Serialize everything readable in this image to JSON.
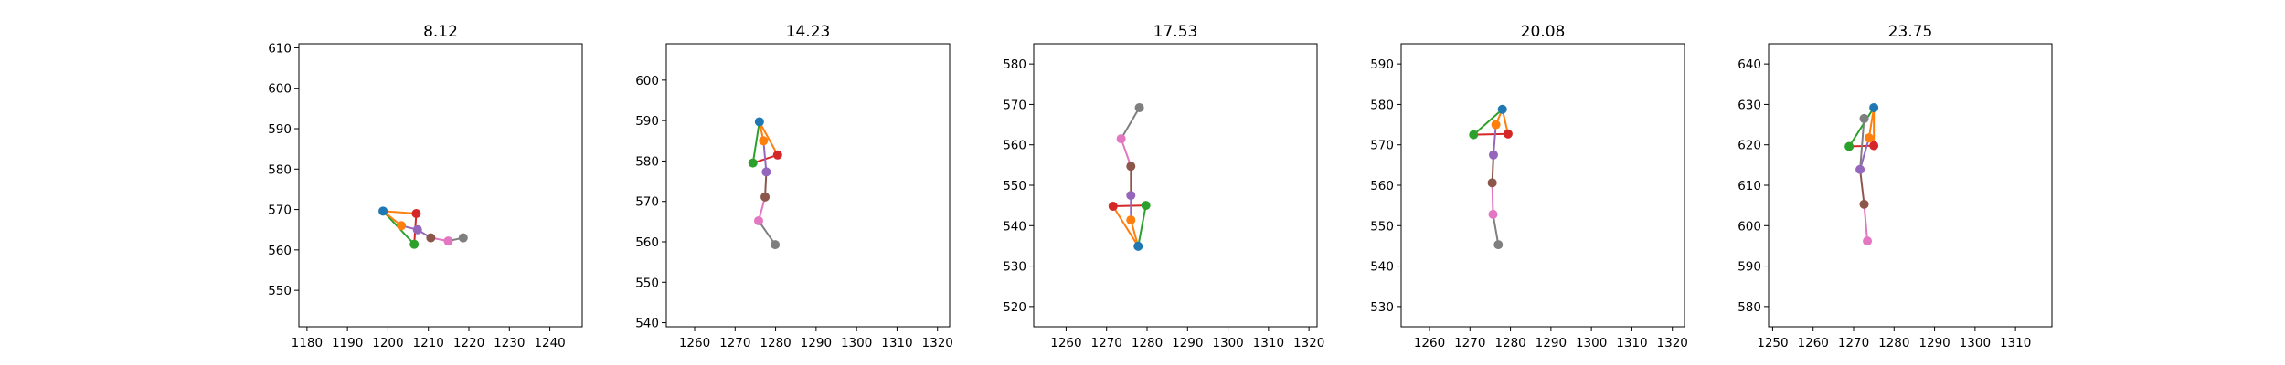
{
  "chart_data": [
    {
      "type": "scatter",
      "title": "8.12",
      "xlim": [
        1178,
        1248
      ],
      "ylim": [
        541,
        611
      ],
      "xticks": [
        1180,
        1190,
        1200,
        1210,
        1220,
        1230,
        1240
      ],
      "yticks": [
        550,
        560,
        570,
        580,
        590,
        600,
        610
      ],
      "points": [
        {
          "x": 1198.8,
          "y": 569.6,
          "color": "#1f77b4"
        },
        {
          "x": 1207.0,
          "y": 569.0,
          "color": "#d62728"
        },
        {
          "x": 1206.5,
          "y": 561.4,
          "color": "#2ca02c"
        },
        {
          "x": 1203.3,
          "y": 566.0,
          "color": "#ff7f0e"
        },
        {
          "x": 1207.3,
          "y": 565.0,
          "color": "#9467bd"
        },
        {
          "x": 1210.6,
          "y": 563.0,
          "color": "#8c564b"
        },
        {
          "x": 1214.9,
          "y": 562.2,
          "color": "#e377c2"
        },
        {
          "x": 1218.6,
          "y": 563.0,
          "color": "#7f7f7f"
        }
      ],
      "edges": [
        [
          0,
          1,
          "#ff7f0e"
        ],
        [
          0,
          2,
          "#2ca02c"
        ],
        [
          1,
          2,
          "#d62728"
        ],
        [
          0,
          3,
          "#ff7f0e"
        ],
        [
          3,
          4,
          "#9467bd"
        ],
        [
          4,
          5,
          "#9467bd"
        ],
        [
          5,
          6,
          "#e377c2"
        ],
        [
          6,
          7,
          "#7f7f7f"
        ]
      ]
    },
    {
      "type": "scatter",
      "title": "14.23",
      "xlim": [
        1253,
        1323
      ],
      "ylim": [
        539,
        609
      ],
      "xticks": [
        1260,
        1270,
        1280,
        1290,
        1300,
        1310,
        1320
      ],
      "yticks": [
        540,
        550,
        560,
        570,
        580,
        590,
        600
      ],
      "points": [
        {
          "x": 1276.0,
          "y": 589.7,
          "color": "#1f77b4"
        },
        {
          "x": 1280.5,
          "y": 581.5,
          "color": "#d62728"
        },
        {
          "x": 1274.4,
          "y": 579.5,
          "color": "#2ca02c"
        },
        {
          "x": 1277.0,
          "y": 585.0,
          "color": "#ff7f0e"
        },
        {
          "x": 1277.7,
          "y": 577.3,
          "color": "#9467bd"
        },
        {
          "x": 1277.4,
          "y": 571.1,
          "color": "#8c564b"
        },
        {
          "x": 1275.8,
          "y": 565.2,
          "color": "#e377c2"
        },
        {
          "x": 1279.9,
          "y": 559.3,
          "color": "#7f7f7f"
        }
      ],
      "edges": [
        [
          0,
          1,
          "#ff7f0e"
        ],
        [
          0,
          2,
          "#2ca02c"
        ],
        [
          1,
          2,
          "#d62728"
        ],
        [
          0,
          3,
          "#ff7f0e"
        ],
        [
          3,
          4,
          "#9467bd"
        ],
        [
          4,
          5,
          "#8c564b"
        ],
        [
          5,
          6,
          "#e377c2"
        ],
        [
          6,
          7,
          "#7f7f7f"
        ]
      ]
    },
    {
      "type": "scatter",
      "title": "17.53",
      "xlim": [
        1252,
        1322
      ],
      "ylim": [
        515,
        585
      ],
      "xticks": [
        1260,
        1270,
        1280,
        1290,
        1300,
        1310,
        1320
      ],
      "yticks": [
        520,
        530,
        540,
        550,
        560,
        570,
        580
      ],
      "points": [
        {
          "x": 1277.8,
          "y": 534.9,
          "color": "#1f77b4"
        },
        {
          "x": 1271.6,
          "y": 544.8,
          "color": "#d62728"
        },
        {
          "x": 1279.7,
          "y": 545.0,
          "color": "#2ca02c"
        },
        {
          "x": 1276.0,
          "y": 541.4,
          "color": "#ff7f0e"
        },
        {
          "x": 1276.0,
          "y": 547.5,
          "color": "#9467bd"
        },
        {
          "x": 1276.0,
          "y": 554.7,
          "color": "#8c564b"
        },
        {
          "x": 1273.6,
          "y": 561.5,
          "color": "#e377c2"
        },
        {
          "x": 1278.1,
          "y": 569.2,
          "color": "#7f7f7f"
        }
      ],
      "edges": [
        [
          0,
          1,
          "#ff7f0e"
        ],
        [
          0,
          2,
          "#2ca02c"
        ],
        [
          1,
          2,
          "#d62728"
        ],
        [
          0,
          3,
          "#ff7f0e"
        ],
        [
          3,
          4,
          "#9467bd"
        ],
        [
          4,
          5,
          "#8c564b"
        ],
        [
          5,
          6,
          "#e377c2"
        ],
        [
          6,
          7,
          "#7f7f7f"
        ]
      ]
    },
    {
      "type": "scatter",
      "title": "20.08",
      "xlim": [
        1253,
        1323
      ],
      "ylim": [
        525,
        595
      ],
      "xticks": [
        1260,
        1270,
        1280,
        1290,
        1300,
        1310,
        1320
      ],
      "yticks": [
        530,
        540,
        550,
        560,
        570,
        580,
        590
      ],
      "points": [
        {
          "x": 1278.0,
          "y": 578.8,
          "color": "#1f77b4"
        },
        {
          "x": 1279.4,
          "y": 572.7,
          "color": "#d62728"
        },
        {
          "x": 1270.9,
          "y": 572.5,
          "color": "#2ca02c"
        },
        {
          "x": 1276.4,
          "y": 575.0,
          "color": "#ff7f0e"
        },
        {
          "x": 1275.8,
          "y": 567.5,
          "color": "#9467bd"
        },
        {
          "x": 1275.5,
          "y": 560.6,
          "color": "#8c564b"
        },
        {
          "x": 1275.7,
          "y": 552.8,
          "color": "#e377c2"
        },
        {
          "x": 1277.0,
          "y": 545.3,
          "color": "#7f7f7f"
        }
      ],
      "edges": [
        [
          0,
          1,
          "#ff7f0e"
        ],
        [
          0,
          2,
          "#2ca02c"
        ],
        [
          1,
          2,
          "#d62728"
        ],
        [
          0,
          3,
          "#ff7f0e"
        ],
        [
          3,
          4,
          "#9467bd"
        ],
        [
          4,
          5,
          "#8c564b"
        ],
        [
          5,
          6,
          "#e377c2"
        ],
        [
          6,
          7,
          "#7f7f7f"
        ]
      ]
    },
    {
      "type": "scatter",
      "title": "23.75",
      "xlim": [
        1249,
        1319
      ],
      "ylim": [
        575,
        645
      ],
      "xticks": [
        1250,
        1260,
        1270,
        1280,
        1290,
        1300,
        1310
      ],
      "yticks": [
        580,
        590,
        600,
        610,
        620,
        630,
        640
      ],
      "points": [
        {
          "x": 1275.0,
          "y": 629.2,
          "color": "#1f77b4"
        },
        {
          "x": 1275.0,
          "y": 619.8,
          "color": "#d62728"
        },
        {
          "x": 1268.9,
          "y": 619.6,
          "color": "#2ca02c"
        },
        {
          "x": 1273.8,
          "y": 621.7,
          "color": "#ff7f0e"
        },
        {
          "x": 1271.6,
          "y": 613.9,
          "color": "#9467bd"
        },
        {
          "x": 1272.6,
          "y": 605.3,
          "color": "#8c564b"
        },
        {
          "x": 1273.4,
          "y": 596.2,
          "color": "#e377c2"
        },
        {
          "x": 1272.6,
          "y": 626.5,
          "color": "#7f7f7f"
        }
      ],
      "edges": [
        [
          0,
          1,
          "#ff7f0e"
        ],
        [
          0,
          2,
          "#2ca02c"
        ],
        [
          1,
          2,
          "#d62728"
        ],
        [
          0,
          3,
          "#ff7f0e"
        ],
        [
          3,
          4,
          "#9467bd"
        ],
        [
          4,
          5,
          "#8c564b"
        ],
        [
          5,
          6,
          "#e377c2"
        ],
        [
          4,
          7,
          "#7f7f7f"
        ]
      ]
    }
  ]
}
